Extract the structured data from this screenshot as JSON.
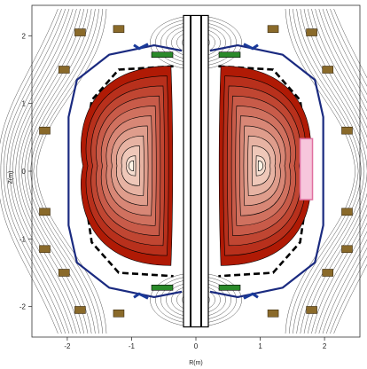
{
  "chart_data": {
    "type": "contour",
    "xlabel": "R(m)",
    "ylabel": "Z(m)",
    "xlim": [
      -2.55,
      2.55
    ],
    "ylim": [
      -2.45,
      2.45
    ],
    "xticks": [
      -2,
      -1,
      0,
      1,
      2
    ],
    "yticks": [
      -2,
      -1,
      0,
      1,
      2
    ],
    "grid": false,
    "legend": "none",
    "plasma": {
      "magnetic_axis": [
        [
          -1.0,
          0.08
        ],
        [
          1.0,
          0.08
        ]
      ],
      "flux_levels": [
        1.0,
        0.9,
        0.8,
        0.7,
        0.6,
        0.5,
        0.4,
        0.3,
        0.2,
        0.1,
        0.05
      ]
    },
    "colors": {
      "flux_edge": "#b01a05",
      "flux_core": "#fff4e6",
      "contour_line": "#000000",
      "field_line": "#555555",
      "vessel": "#1a2a80",
      "coil": "#8a6a2a",
      "limiter_box": "#e070a0",
      "divertor": "#1a3a9a",
      "target_plate": "#2a8a2a"
    }
  }
}
